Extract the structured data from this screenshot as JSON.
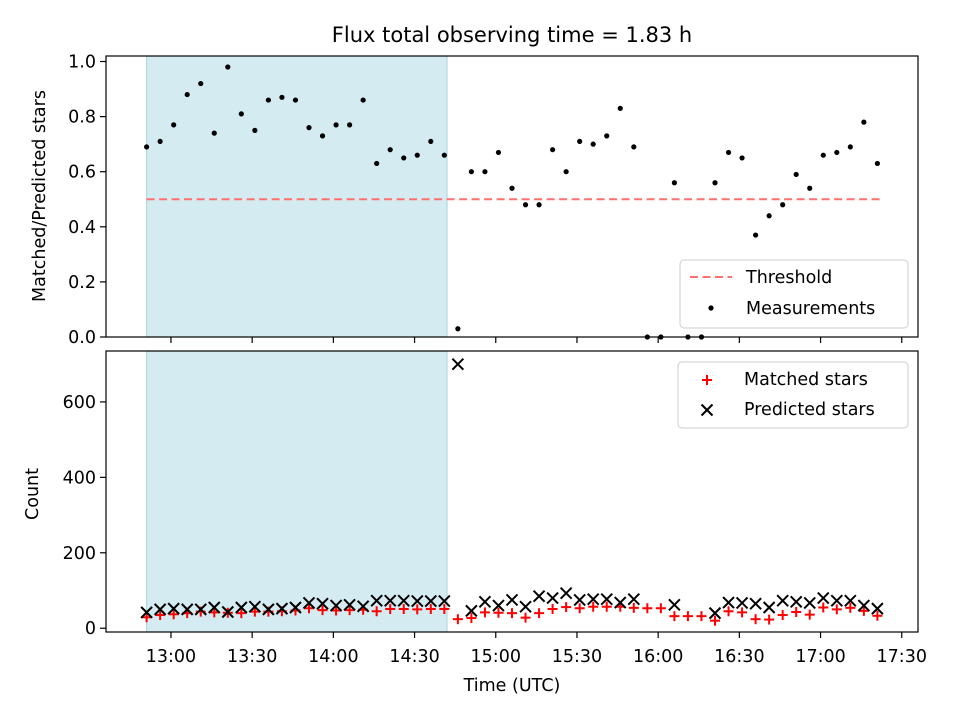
{
  "chart_data": [
    {
      "type": "scatter",
      "title": "Flux total observing time = 1.83 h",
      "ylabel": "Matched/Predicted stars",
      "ylim": [
        0,
        1.02
      ],
      "yticks": [
        "0.0",
        "0.2",
        "0.4",
        "0.6",
        "0.8",
        "1.0"
      ],
      "ytick_values": [
        0.0,
        0.2,
        0.4,
        0.6,
        0.8,
        1.0
      ],
      "shaded_span": [
        "12:51",
        "14:42"
      ],
      "shaded_color": "#d4ebf1",
      "threshold": {
        "name": "Threshold",
        "value": 0.5,
        "x_range": [
          "12:51",
          "17:22"
        ],
        "color": "#ff7070"
      },
      "legend_position": "lower-right",
      "series": [
        {
          "name": "Measurements",
          "color": "#000000",
          "x": [
            "12:51",
            "12:56",
            "13:01",
            "13:06",
            "13:11",
            "13:16",
            "13:21",
            "13:26",
            "13:31",
            "13:36",
            "13:41",
            "13:46",
            "13:51",
            "13:56",
            "14:01",
            "14:06",
            "14:11",
            "14:16",
            "14:21",
            "14:26",
            "14:31",
            "14:36",
            "14:41",
            "14:46",
            "14:51",
            "14:56",
            "15:01",
            "15:06",
            "15:11",
            "15:16",
            "15:21",
            "15:26",
            "15:31",
            "15:36",
            "15:41",
            "15:46",
            "15:51",
            "15:56",
            "16:01",
            "16:06",
            "16:11",
            "16:16",
            "16:21",
            "16:26",
            "16:31",
            "16:36",
            "16:41",
            "16:46",
            "16:51",
            "16:56",
            "17:01",
            "17:06",
            "17:11",
            "17:16",
            "17:21"
          ],
          "y": [
            0.69,
            0.71,
            0.77,
            0.88,
            0.92,
            0.74,
            0.98,
            0.81,
            0.75,
            0.86,
            0.87,
            0.86,
            0.76,
            0.73,
            0.77,
            0.77,
            0.86,
            0.63,
            0.68,
            0.65,
            0.66,
            0.71,
            0.66,
            0.03,
            0.6,
            0.6,
            0.67,
            0.54,
            0.48,
            0.48,
            0.68,
            0.6,
            0.71,
            0.7,
            0.73,
            0.83,
            0.69,
            0.0,
            0.0,
            0.56,
            0.0,
            0.0,
            0.56,
            0.67,
            0.65,
            0.37,
            0.44,
            0.48,
            0.59,
            0.54,
            0.66,
            0.67,
            0.69,
            0.78,
            0.63
          ]
        }
      ]
    },
    {
      "type": "scatter",
      "ylabel": "Count",
      "xlabel": "Time (UTC)",
      "ylim": [
        -10,
        735
      ],
      "yticks": [
        "0",
        "200",
        "400",
        "600"
      ],
      "ytick_values": [
        0,
        200,
        400,
        600
      ],
      "xlim": [
        "12:36",
        "17:36"
      ],
      "xticks": [
        "13:00",
        "13:30",
        "14:00",
        "14:30",
        "15:00",
        "15:30",
        "16:00",
        "16:30",
        "17:00",
        "17:30"
      ],
      "shaded_span": [
        "12:51",
        "14:42"
      ],
      "shaded_color": "#d4ebf1",
      "legend_position": "upper-right",
      "series": [
        {
          "name": "Matched stars",
          "color": "#ff0000",
          "marker": "+",
          "x": [
            "12:51",
            "12:56",
            "13:01",
            "13:06",
            "13:11",
            "13:16",
            "13:21",
            "13:26",
            "13:31",
            "13:36",
            "13:41",
            "13:46",
            "13:51",
            "13:56",
            "14:01",
            "14:06",
            "14:11",
            "14:16",
            "14:21",
            "14:26",
            "14:31",
            "14:36",
            "14:41",
            "14:46",
            "14:51",
            "14:56",
            "15:01",
            "15:06",
            "15:11",
            "15:16",
            "15:21",
            "15:26",
            "15:31",
            "15:36",
            "15:41",
            "15:46",
            "15:51",
            "15:56",
            "16:01",
            "16:06",
            "16:11",
            "16:16",
            "16:21",
            "16:26",
            "16:31",
            "16:36",
            "16:41",
            "16:46",
            "16:51",
            "16:56",
            "17:01",
            "17:06",
            "17:11",
            "17:16",
            "17:21"
          ],
          "y": [
            29,
            35,
            37,
            40,
            44,
            42,
            41,
            40,
            44,
            44,
            45,
            47,
            53,
            48,
            47,
            48,
            49,
            45,
            51,
            51,
            50,
            51,
            51,
            24,
            27,
            42,
            41,
            40,
            28,
            40,
            51,
            56,
            53,
            57,
            57,
            57,
            54,
            53,
            53,
            32,
            32,
            32,
            20,
            45,
            42,
            24,
            23,
            35,
            43,
            36,
            55,
            50,
            54,
            46,
            33
          ]
        },
        {
          "name": "Predicted stars",
          "color": "#000000",
          "marker": "x",
          "x": [
            "12:51",
            "12:56",
            "13:01",
            "13:06",
            "13:11",
            "13:16",
            "13:21",
            "13:26",
            "13:31",
            "13:36",
            "13:41",
            "13:46",
            "13:51",
            "13:56",
            "14:01",
            "14:06",
            "14:11",
            "14:16",
            "14:21",
            "14:26",
            "14:31",
            "14:36",
            "14:41",
            "14:46",
            "14:51",
            "14:56",
            "15:01",
            "15:06",
            "15:11",
            "15:16",
            "15:21",
            "15:26",
            "15:31",
            "15:36",
            "15:41",
            "15:46",
            "15:51",
            "16:06",
            "16:21",
            "16:26",
            "16:31",
            "16:36",
            "16:41",
            "16:46",
            "16:51",
            "16:56",
            "17:01",
            "17:06",
            "17:11",
            "17:16",
            "17:21"
          ],
          "y": [
            42,
            50,
            52,
            50,
            50,
            55,
            43,
            55,
            57,
            50,
            52,
            55,
            67,
            65,
            60,
            62,
            58,
            73,
            73,
            73,
            72,
            72,
            72,
            700,
            46,
            70,
            60,
            75,
            57,
            85,
            80,
            93,
            75,
            77,
            77,
            68,
            77,
            62,
            40,
            68,
            67,
            65,
            55,
            73,
            70,
            67,
            80,
            73,
            73,
            60,
            52
          ]
        }
      ]
    }
  ]
}
